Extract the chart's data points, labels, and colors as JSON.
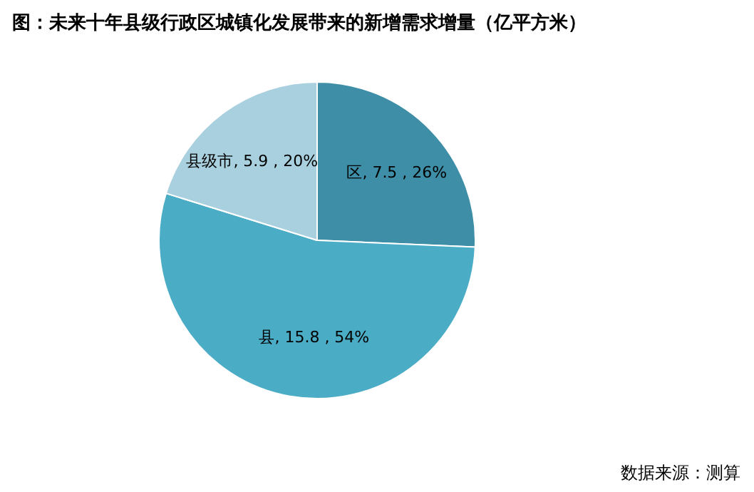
{
  "chart_data": {
    "type": "pie",
    "title": "图：未来十年县级行政区城镇化发展带来的新增需求增量（亿平方米）",
    "categories": [
      "区",
      "县",
      "县级市"
    ],
    "values": [
      7.5,
      15.8,
      5.9
    ],
    "colors": [
      "#3d8ea6",
      "#4bacc6",
      "#a9d0de"
    ],
    "value_labels": [
      ", 7.5 , 26%",
      ", 15.8 , 54%",
      ", 5.9 , 20%"
    ],
    "legend": false,
    "annotations": [
      "数据来源：测算"
    ]
  }
}
